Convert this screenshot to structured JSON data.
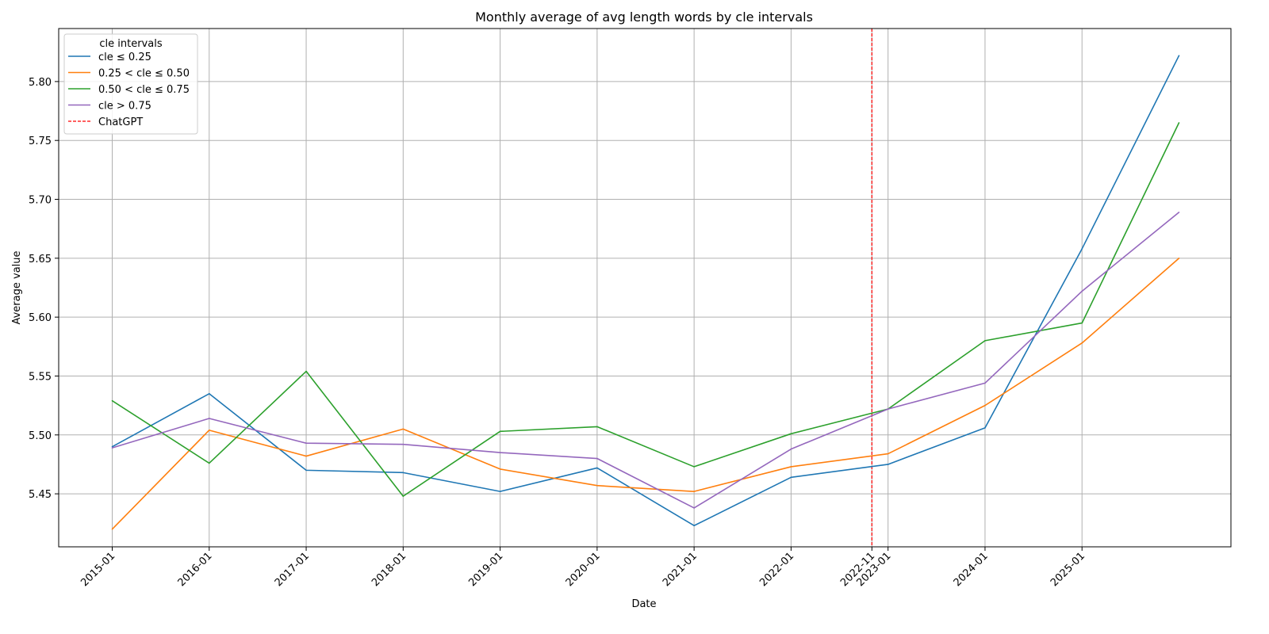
{
  "chart_data": {
    "type": "line",
    "title": "Monthly average of avg length words by cle intervals",
    "xlabel": "Date",
    "ylabel": "Average value",
    "x_ticks": [
      "2015-01",
      "2016-01",
      "2017-01",
      "2018-01",
      "2019-01",
      "2020-01",
      "2021-01",
      "2022-01",
      "2022-11",
      "2023-01",
      "2024-01",
      "2025-01"
    ],
    "x": [
      "2015-01",
      "2016-01",
      "2017-01",
      "2018-01",
      "2019-01",
      "2020-01",
      "2021-01",
      "2022-01",
      "2023-01",
      "2024-01",
      "2025-01",
      "2026-01"
    ],
    "y_ticks": [
      "5.45",
      "5.50",
      "5.55",
      "5.60",
      "5.65",
      "5.70",
      "5.75",
      "5.80"
    ],
    "ylim": [
      5.405,
      5.845
    ],
    "grid": true,
    "legend": {
      "title": "cle intervals",
      "placement": "upper-left"
    },
    "series": [
      {
        "name": "cle ≤ 0.25",
        "color": "#1f77b4",
        "values": [
          5.49,
          5.535,
          5.47,
          5.468,
          5.452,
          5.472,
          5.423,
          5.464,
          5.475,
          5.506,
          5.658,
          5.822
        ]
      },
      {
        "name": "0.25 < cle ≤ 0.50",
        "color": "#ff7f0e",
        "values": [
          5.42,
          5.504,
          5.482,
          5.505,
          5.471,
          5.457,
          5.452,
          5.473,
          5.484,
          5.525,
          5.578,
          5.65
        ]
      },
      {
        "name": "0.50 < cle ≤ 0.75",
        "color": "#2ca02c",
        "values": [
          5.529,
          5.476,
          5.554,
          5.448,
          5.503,
          5.507,
          5.473,
          5.501,
          5.522,
          5.58,
          5.595,
          5.765
        ]
      },
      {
        "name": "cle > 0.75",
        "color": "#9467bd",
        "values": [
          5.489,
          5.514,
          5.493,
          5.492,
          5.485,
          5.48,
          5.438,
          5.488,
          5.522,
          5.544,
          5.622,
          5.689
        ]
      }
    ],
    "annotations": [
      {
        "label": "ChatGPT",
        "type": "vertical-line",
        "x": "2022-11",
        "color": "#ff0000",
        "style": "dashed"
      }
    ]
  }
}
